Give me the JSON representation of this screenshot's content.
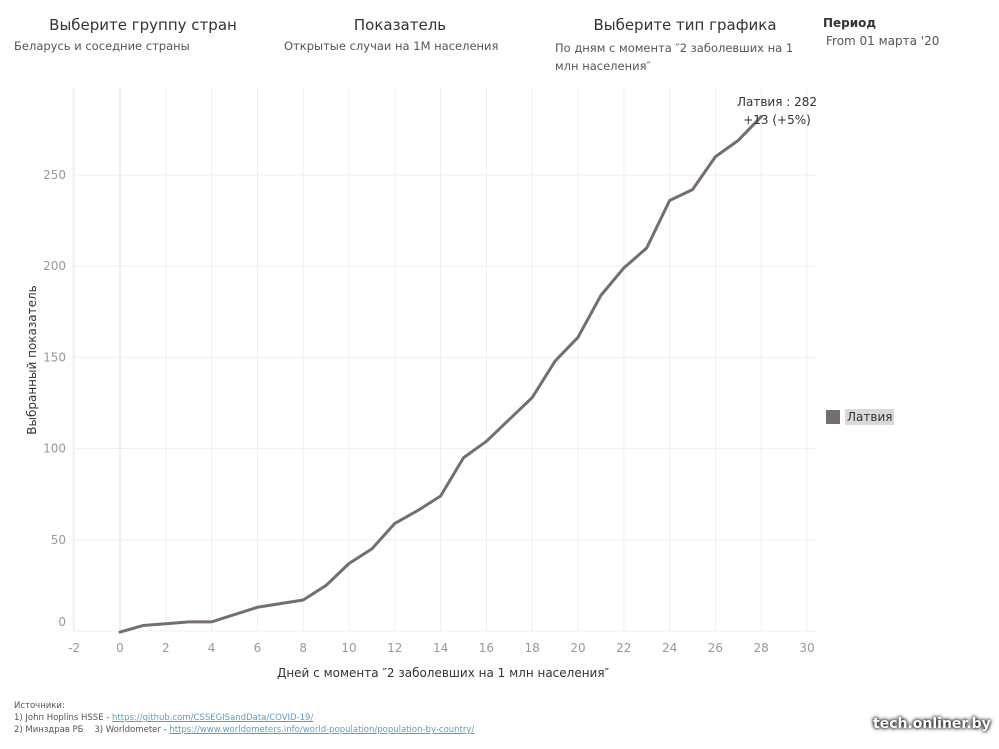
{
  "controls": {
    "country_group": {
      "title": "Выберите группу стран",
      "value": "Беларусь и соседние страны"
    },
    "indicator": {
      "title": "Показатель",
      "value": "Открытые случаи на 1М населения"
    },
    "chart_type": {
      "title": "Выберите тип графика",
      "value": "По дням с момента ″2 заболевших на 1 млн населения″"
    },
    "period": {
      "title": "Период",
      "value": "From 01 марта '20"
    }
  },
  "legend": {
    "items": [
      {
        "label": "Латвия",
        "color": "#766e6c"
      }
    ]
  },
  "sources": {
    "header": "Источники:",
    "line1_prefix": "1) Johп Hoplins HSSE - ",
    "line1_link": "https://github.com/CSSEGISandData/COVID-19/",
    "line2_prefix": "2) Минздрав РБ    3) Worldometer - ",
    "line2_link": "https://www.worldometers.info/world-population/population-by-country/"
  },
  "watermark": "tech.onliner.by",
  "chart_data": {
    "type": "line",
    "title": "",
    "xlabel": "Дней с момента ″2 заболевших на 1 млн населения″",
    "ylabel": "Выбранный показатель",
    "xlim": [
      -3,
      30.5
    ],
    "ylim": [
      -5,
      290
    ],
    "x_ticks": [
      -2,
      0,
      2,
      4,
      6,
      8,
      10,
      12,
      14,
      16,
      18,
      20,
      22,
      24,
      26,
      28,
      30
    ],
    "y_ticks": [
      0,
      50,
      100,
      150,
      200,
      250
    ],
    "grid": true,
    "reference_line_x": 0,
    "legend_position": "right",
    "series": [
      {
        "name": "Латвия",
        "color": "#766e6c",
        "x": [
          0,
          1,
          2,
          3,
          4,
          5,
          6,
          7,
          8,
          9,
          10,
          11,
          12,
          13,
          14,
          15,
          16,
          17,
          18,
          19,
          20,
          21,
          22,
          23,
          24,
          25,
          26,
          27,
          28
        ],
        "values": [
          0,
          3,
          4,
          5,
          5,
          9,
          13,
          15,
          17,
          25,
          37,
          45,
          59,
          66,
          74,
          95,
          104,
          116,
          128,
          148,
          161,
          184,
          199,
          210,
          236,
          242,
          260,
          269,
          282
        ]
      }
    ],
    "annotation": {
      "line1": "Латвия : 282",
      "line2": "+13 (+5%)"
    }
  }
}
